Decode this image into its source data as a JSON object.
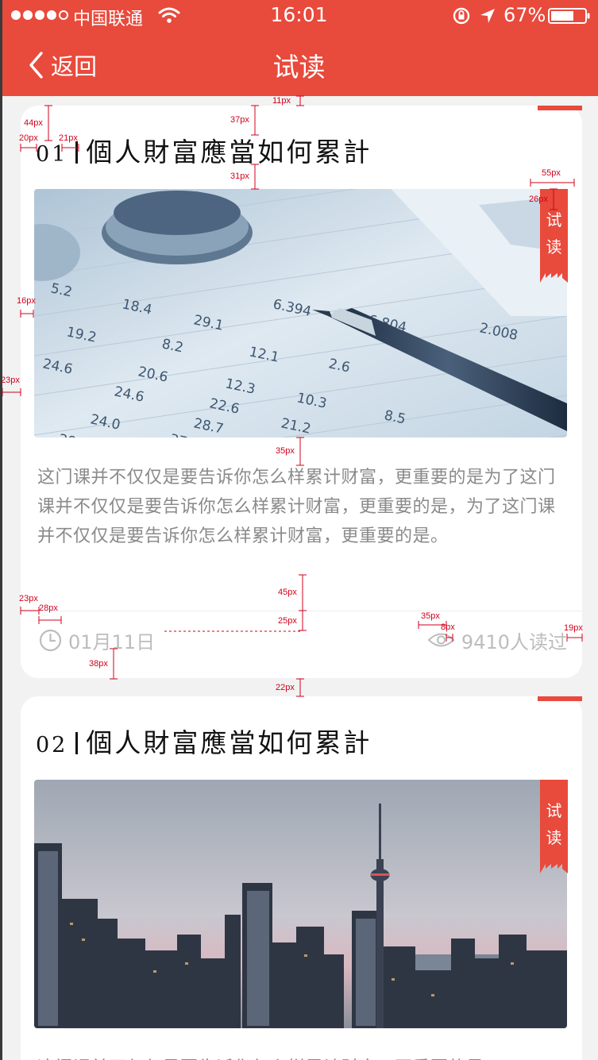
{
  "status_bar": {
    "carrier": "中国联通",
    "time": "16:01",
    "battery": "67%"
  },
  "nav": {
    "back_label": "返回",
    "title": "试读"
  },
  "colors": {
    "accent": "#e84a3c",
    "text_gray": "#8a8a8a",
    "meta_gray": "#bdbdbd",
    "annotation": "#d0021b"
  },
  "cards": [
    {
      "number": "01",
      "title": "個人財富應當如何累計",
      "badge": "试读",
      "description": "这门课并不仅仅是要告诉你怎么样累计财富，更重要的是为了这门课并不仅仅是要告诉你怎么样累计财富，更重要的是，为了这门课并不仅仅是要告诉你怎么样累计财富，更重要的是。",
      "date": "01月11日",
      "reads": "9410人读过",
      "image": "finance-pen-calculator"
    },
    {
      "number": "02",
      "title": "個人財富應當如何累計",
      "badge": "试读",
      "description": "这门课并不仅仅是要告诉你怎么样累计财富，更重要的是",
      "image": "city-skyline"
    }
  ],
  "annotations": [
    "11px",
    "44px",
    "37px",
    "20px",
    "21px",
    "31px",
    "55px",
    "26px",
    "16px",
    "23px",
    "35px",
    "45px",
    "23px",
    "28px",
    "25px",
    "35px",
    "8px",
    "19px",
    "38px",
    "22px"
  ]
}
